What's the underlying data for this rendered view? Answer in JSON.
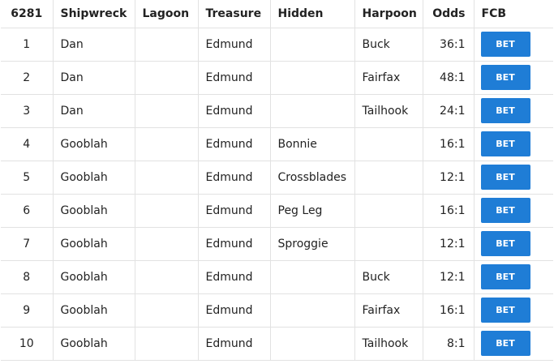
{
  "accent_color": "#1f7dd6",
  "table": {
    "headers": [
      "6281",
      "Shipwreck",
      "Lagoon",
      "Treasure",
      "Hidden",
      "Harpoon",
      "Odds",
      "FCB"
    ],
    "rows": [
      {
        "num": "1",
        "shipwreck": "Dan",
        "lagoon": "",
        "treasure": "Edmund",
        "hidden": "",
        "harpoon": "Buck",
        "odds": "36:1",
        "bet": "BET"
      },
      {
        "num": "2",
        "shipwreck": "Dan",
        "lagoon": "",
        "treasure": "Edmund",
        "hidden": "",
        "harpoon": "Fairfax",
        "odds": "48:1",
        "bet": "BET"
      },
      {
        "num": "3",
        "shipwreck": "Dan",
        "lagoon": "",
        "treasure": "Edmund",
        "hidden": "",
        "harpoon": "Tailhook",
        "odds": "24:1",
        "bet": "BET"
      },
      {
        "num": "4",
        "shipwreck": "Gooblah",
        "lagoon": "",
        "treasure": "Edmund",
        "hidden": "Bonnie",
        "harpoon": "",
        "odds": "16:1",
        "bet": "BET"
      },
      {
        "num": "5",
        "shipwreck": "Gooblah",
        "lagoon": "",
        "treasure": "Edmund",
        "hidden": "Crossblades",
        "harpoon": "",
        "odds": "12:1",
        "bet": "BET"
      },
      {
        "num": "6",
        "shipwreck": "Gooblah",
        "lagoon": "",
        "treasure": "Edmund",
        "hidden": "Peg Leg",
        "harpoon": "",
        "odds": "16:1",
        "bet": "BET"
      },
      {
        "num": "7",
        "shipwreck": "Gooblah",
        "lagoon": "",
        "treasure": "Edmund",
        "hidden": "Sproggie",
        "harpoon": "",
        "odds": "12:1",
        "bet": "BET"
      },
      {
        "num": "8",
        "shipwreck": "Gooblah",
        "lagoon": "",
        "treasure": "Edmund",
        "hidden": "",
        "harpoon": "Buck",
        "odds": "12:1",
        "bet": "BET"
      },
      {
        "num": "9",
        "shipwreck": "Gooblah",
        "lagoon": "",
        "treasure": "Edmund",
        "hidden": "",
        "harpoon": "Fairfax",
        "odds": "16:1",
        "bet": "BET"
      },
      {
        "num": "10",
        "shipwreck": "Gooblah",
        "lagoon": "",
        "treasure": "Edmund",
        "hidden": "",
        "harpoon": "Tailhook",
        "odds": "8:1",
        "bet": "BET"
      }
    ]
  }
}
